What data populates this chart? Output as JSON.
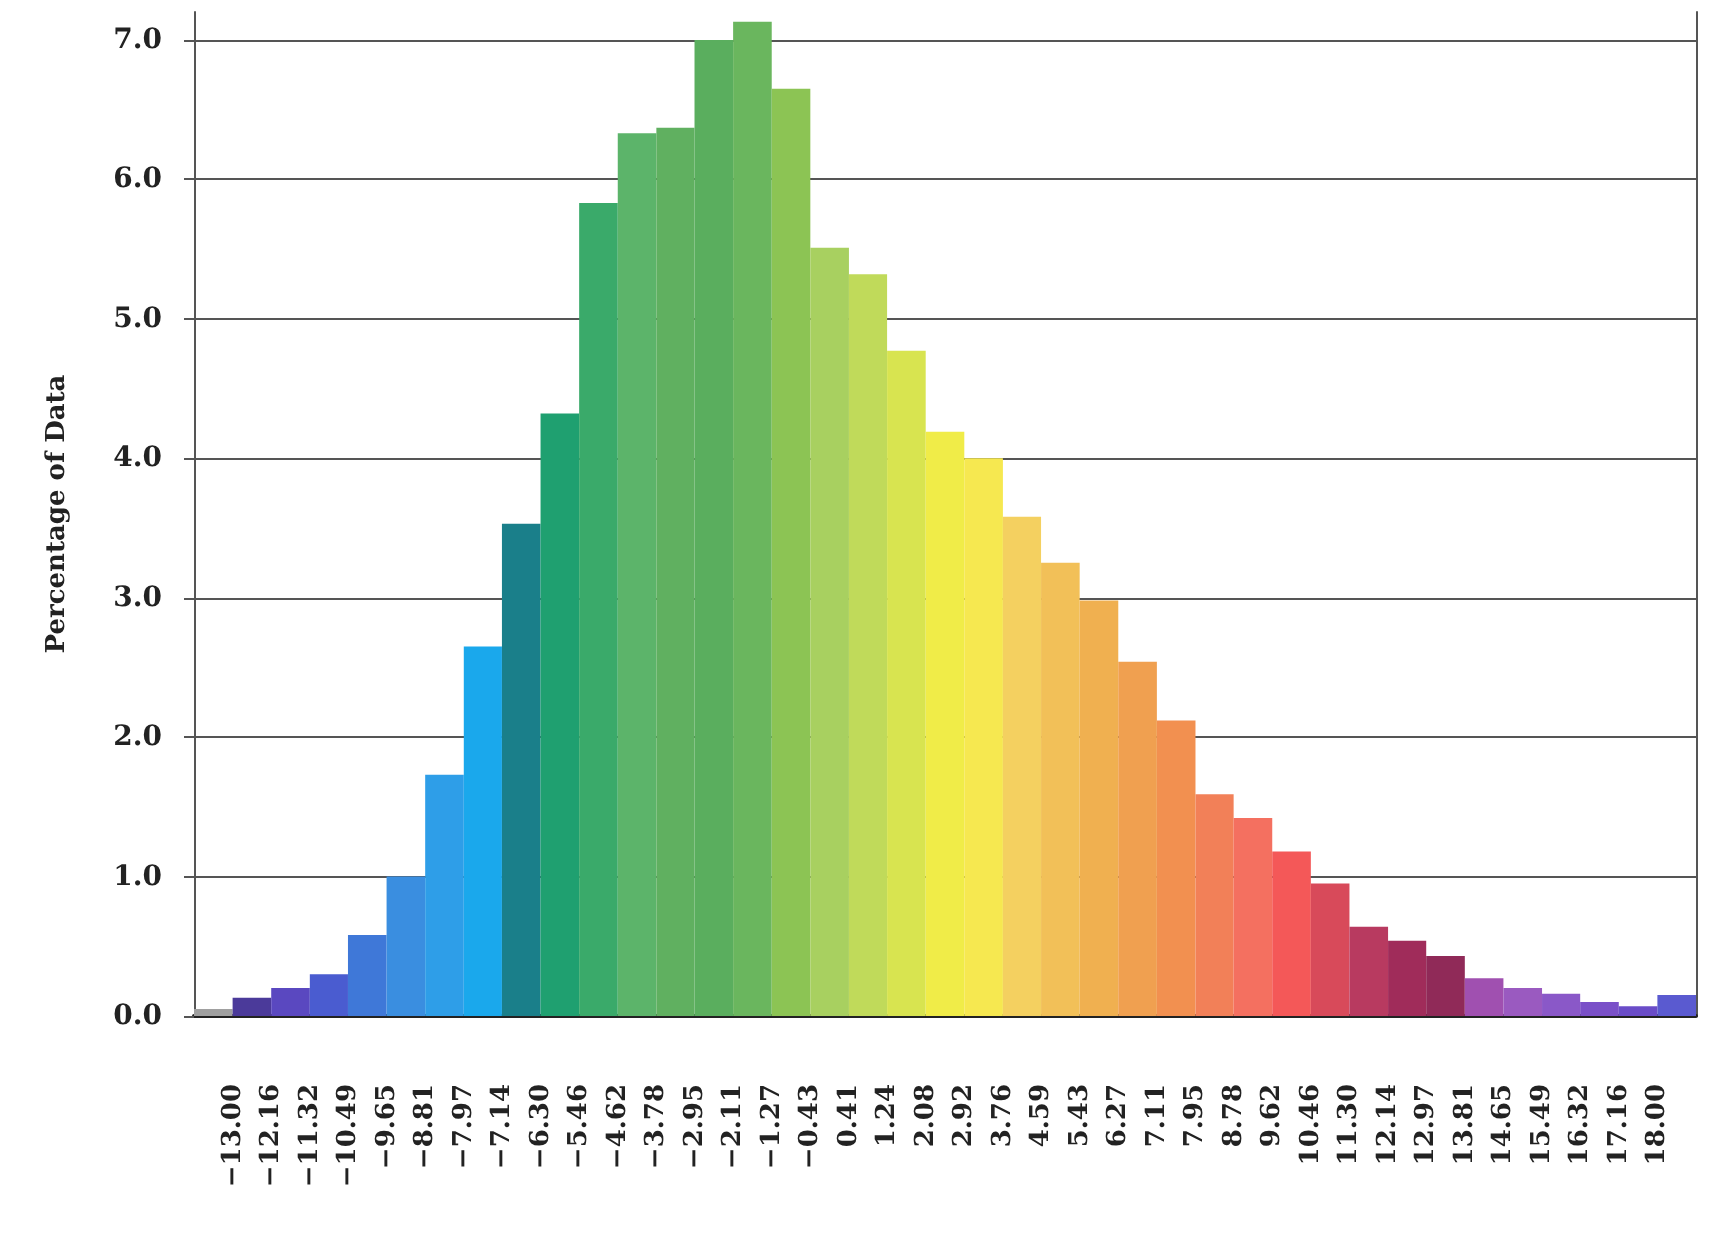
{
  "chart_data": {
    "type": "histogram",
    "ylabel": "Percentage of Data",
    "bins": [
      -13.84,
      -13.0,
      -12.16,
      -11.32,
      -10.49,
      -9.65,
      -8.81,
      -7.97,
      -7.14,
      -6.3,
      -5.46,
      -4.62,
      -3.78,
      -2.95,
      -2.11,
      -1.27,
      -0.43,
      0.41,
      1.24,
      2.08,
      2.92,
      3.76,
      4.59,
      5.43,
      6.27,
      7.11,
      7.95,
      8.78,
      9.62,
      10.46,
      11.3,
      12.14,
      12.97,
      13.81,
      14.65,
      15.49,
      16.32,
      17.16,
      18.0,
      18.84
    ],
    "values": [
      0.05,
      0.13,
      0.2,
      0.3,
      0.58,
      1.0,
      1.73,
      2.65,
      3.53,
      4.32,
      5.83,
      6.33,
      6.37,
      7.0,
      7.13,
      6.65,
      5.51,
      5.32,
      4.77,
      4.19,
      4.0,
      3.58,
      3.25,
      2.98,
      2.54,
      2.12,
      1.59,
      1.42,
      1.18,
      0.95,
      0.64,
      0.54,
      0.43,
      0.27,
      0.2,
      0.16,
      0.1,
      0.07,
      0.15
    ],
    "colors": [
      "#a0a0a0",
      "#4b3a9a",
      "#5a48c0",
      "#4a5cd0",
      "#3f78d8",
      "#3a8ee0",
      "#2e9ee8",
      "#1aa8ec",
      "#1a7f8a",
      "#1fa070",
      "#3aaa6a",
      "#5cb46a",
      "#60b060",
      "#5aae5e",
      "#6ab65e",
      "#8cc454",
      "#a8d060",
      "#c0da5a",
      "#d8e450",
      "#f0ec48",
      "#f6e850",
      "#f4d060",
      "#f2c058",
      "#f0b050",
      "#f0a050",
      "#f29050",
      "#f28058",
      "#f47060",
      "#f45858",
      "#d84a5a",
      "#b83a60",
      "#a02c5a",
      "#902a58",
      "#a050b0",
      "#9a5ac0",
      "#8a58c8",
      "#7a50c8",
      "#6a4cc8",
      "#5a5ad0"
    ],
    "xlim": [
      -13.84,
      18.84
    ],
    "xticks": [
      {
        "value": -13.0,
        "label": "−13.00"
      },
      {
        "value": -12.16,
        "label": "−12.16"
      },
      {
        "value": -11.32,
        "label": "−11.32"
      },
      {
        "value": -10.49,
        "label": "−10.49"
      },
      {
        "value": -9.65,
        "label": "−9.65"
      },
      {
        "value": -8.81,
        "label": "−8.81"
      },
      {
        "value": -7.97,
        "label": "−7.97"
      },
      {
        "value": -7.14,
        "label": "−7.14"
      },
      {
        "value": -6.3,
        "label": "−6.30"
      },
      {
        "value": -5.46,
        "label": "−5.46"
      },
      {
        "value": -4.62,
        "label": "−4.62"
      },
      {
        "value": -3.78,
        "label": "−3.78"
      },
      {
        "value": -2.95,
        "label": "−2.95"
      },
      {
        "value": -2.11,
        "label": "−2.11"
      },
      {
        "value": -1.27,
        "label": "−1.27"
      },
      {
        "value": -0.43,
        "label": "−0.43"
      },
      {
        "value": 0.41,
        "label": "0.41"
      },
      {
        "value": 1.24,
        "label": "1.24"
      },
      {
        "value": 2.08,
        "label": "2.08"
      },
      {
        "value": 2.92,
        "label": "2.92"
      },
      {
        "value": 3.76,
        "label": "3.76"
      },
      {
        "value": 4.59,
        "label": "4.59"
      },
      {
        "value": 5.43,
        "label": "5.43"
      },
      {
        "value": 6.27,
        "label": "6.27"
      },
      {
        "value": 7.11,
        "label": "7.11"
      },
      {
        "value": 7.95,
        "label": "7.95"
      },
      {
        "value": 8.78,
        "label": "8.78"
      },
      {
        "value": 9.62,
        "label": "9.62"
      },
      {
        "value": 10.46,
        "label": "10.46"
      },
      {
        "value": 11.3,
        "label": "11.30"
      },
      {
        "value": 12.14,
        "label": "12.14"
      },
      {
        "value": 12.97,
        "label": "12.97"
      },
      {
        "value": 13.81,
        "label": "13.81"
      },
      {
        "value": 14.65,
        "label": "14.65"
      },
      {
        "value": 15.49,
        "label": "15.49"
      },
      {
        "value": 16.32,
        "label": "16.32"
      },
      {
        "value": 17.16,
        "label": "17.16"
      },
      {
        "value": 18.0,
        "label": "18.00"
      }
    ],
    "ylim": [
      0,
      7.2
    ],
    "yticks": [
      {
        "value": 0,
        "label": "0.0"
      },
      {
        "value": 1,
        "label": "1.0"
      },
      {
        "value": 2,
        "label": "2.0"
      },
      {
        "value": 3,
        "label": "3.0"
      },
      {
        "value": 4,
        "label": "4.0"
      },
      {
        "value": 5,
        "label": "5.0"
      },
      {
        "value": 6,
        "label": "6.0"
      },
      {
        "value": 7,
        "label": "7.0"
      }
    ],
    "grid": "y"
  }
}
